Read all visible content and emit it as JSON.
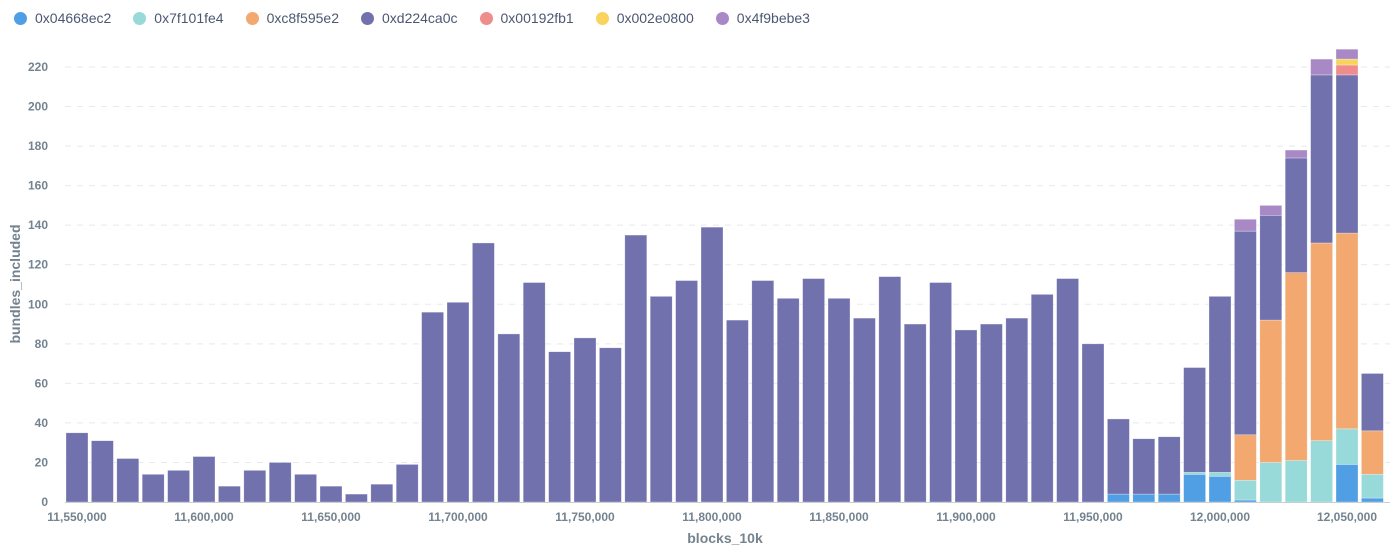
{
  "chart_data": {
    "type": "bar",
    "stacked": true,
    "xlabel": "blocks_10k",
    "ylabel": "bundles_included",
    "ylim": [
      0,
      230
    ],
    "yticks": [
      0,
      20,
      40,
      60,
      80,
      100,
      120,
      140,
      160,
      180,
      200,
      220
    ],
    "xticks": [
      "11,550,000",
      "11,600,000",
      "11,650,000",
      "11,700,000",
      "11,750,000",
      "11,800,000",
      "11,850,000",
      "11,900,000",
      "11,950,000",
      "12,000,000",
      "12,050,000"
    ],
    "xtick_values": [
      11550000,
      11600000,
      11650000,
      11700000,
      11750000,
      11800000,
      11850000,
      11900000,
      11950000,
      12000000,
      12050000
    ],
    "grid": true,
    "legend_position": "top-left",
    "x": [
      11550000,
      11560000,
      11570000,
      11580000,
      11590000,
      11600000,
      11610000,
      11620000,
      11630000,
      11640000,
      11650000,
      11660000,
      11670000,
      11680000,
      11690000,
      11700000,
      11710000,
      11720000,
      11730000,
      11740000,
      11750000,
      11760000,
      11770000,
      11780000,
      11790000,
      11800000,
      11810000,
      11820000,
      11830000,
      11840000,
      11850000,
      11860000,
      11870000,
      11880000,
      11890000,
      11900000,
      11910000,
      11920000,
      11930000,
      11940000,
      11950000,
      11960000,
      11970000,
      11980000,
      11990000,
      12000000,
      12010000,
      12020000,
      12030000,
      12040000,
      12050000,
      12060000
    ],
    "series": [
      {
        "name": "0x04668ec2",
        "color": "#509EE3",
        "values": [
          0,
          0,
          0,
          0,
          0,
          0,
          0,
          0,
          0,
          0,
          0,
          0,
          0,
          0,
          0,
          0,
          0,
          0,
          0,
          0,
          0,
          0,
          0,
          0,
          0,
          0,
          0,
          0,
          0,
          0,
          0,
          0,
          0,
          0,
          0,
          0,
          0,
          0,
          0,
          0,
          0,
          4,
          4,
          4,
          14,
          13,
          1,
          0,
          0,
          0,
          19,
          2
        ]
      },
      {
        "name": "0x7f101fe4",
        "color": "#98D9D9",
        "values": [
          0,
          0,
          0,
          0,
          0,
          0,
          0,
          0,
          0,
          0,
          0,
          0,
          0,
          0,
          0,
          0,
          0,
          0,
          0,
          0,
          0,
          0,
          0,
          0,
          0,
          0,
          0,
          0,
          0,
          0,
          0,
          0,
          0,
          0,
          0,
          0,
          0,
          0,
          0,
          0,
          0,
          0,
          0,
          0,
          1,
          2,
          10,
          20,
          21,
          31,
          18,
          12
        ]
      },
      {
        "name": "0xc8f595e2",
        "color": "#F2A86F",
        "values": [
          0,
          0,
          0,
          0,
          0,
          0,
          0,
          0,
          0,
          0,
          0,
          0,
          0,
          0,
          0,
          0,
          0,
          0,
          0,
          0,
          0,
          0,
          0,
          0,
          0,
          0,
          0,
          0,
          0,
          0,
          0,
          0,
          0,
          0,
          0,
          0,
          0,
          0,
          0,
          0,
          0,
          0,
          0,
          0,
          0,
          0,
          23,
          72,
          95,
          100,
          99,
          22
        ]
      },
      {
        "name": "0xd224ca0c",
        "color": "#7172AD",
        "values": [
          35,
          31,
          22,
          14,
          16,
          23,
          8,
          16,
          20,
          14,
          8,
          4,
          9,
          19,
          96,
          101,
          131,
          85,
          111,
          76,
          83,
          78,
          135,
          104,
          112,
          139,
          92,
          112,
          103,
          113,
          103,
          93,
          114,
          90,
          111,
          87,
          90,
          93,
          105,
          113,
          80,
          38,
          28,
          29,
          53,
          89,
          103,
          53,
          58,
          85,
          80,
          29
        ]
      },
      {
        "name": "0x00192fb1",
        "color": "#EF8C8C",
        "values": [
          0,
          0,
          0,
          0,
          0,
          0,
          0,
          0,
          0,
          0,
          0,
          0,
          0,
          0,
          0,
          0,
          0,
          0,
          0,
          0,
          0,
          0,
          0,
          0,
          0,
          0,
          0,
          0,
          0,
          0,
          0,
          0,
          0,
          0,
          0,
          0,
          0,
          0,
          0,
          0,
          0,
          0,
          0,
          0,
          0,
          0,
          0,
          0,
          0,
          0,
          5,
          0
        ]
      },
      {
        "name": "0x002e0800",
        "color": "#F9D45C",
        "values": [
          0,
          0,
          0,
          0,
          0,
          0,
          0,
          0,
          0,
          0,
          0,
          0,
          0,
          0,
          0,
          0,
          0,
          0,
          0,
          0,
          0,
          0,
          0,
          0,
          0,
          0,
          0,
          0,
          0,
          0,
          0,
          0,
          0,
          0,
          0,
          0,
          0,
          0,
          0,
          0,
          0,
          0,
          0,
          0,
          0,
          0,
          0,
          0,
          0,
          0,
          3,
          0
        ]
      },
      {
        "name": "0x4f9bebe3",
        "color": "#A989C5",
        "values": [
          0,
          0,
          0,
          0,
          0,
          0,
          0,
          0,
          0,
          0,
          0,
          0,
          0,
          0,
          0,
          0,
          0,
          0,
          0,
          0,
          0,
          0,
          0,
          0,
          0,
          0,
          0,
          0,
          0,
          0,
          0,
          0,
          0,
          0,
          0,
          0,
          0,
          0,
          0,
          0,
          0,
          0,
          0,
          0,
          0,
          0,
          6,
          5,
          4,
          8,
          5,
          0
        ]
      }
    ]
  }
}
